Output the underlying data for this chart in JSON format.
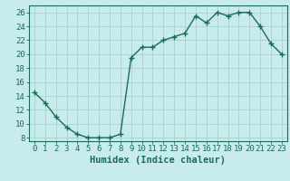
{
  "x": [
    0,
    1,
    2,
    3,
    4,
    5,
    6,
    7,
    8,
    9,
    10,
    11,
    12,
    13,
    14,
    15,
    16,
    17,
    18,
    19,
    20,
    21,
    22,
    23
  ],
  "y": [
    14.5,
    13.0,
    11.0,
    9.5,
    8.5,
    8.0,
    8.0,
    8.0,
    8.5,
    19.5,
    21.0,
    21.0,
    22.0,
    22.5,
    23.0,
    25.5,
    24.5,
    26.0,
    25.5,
    26.0,
    26.0,
    24.0,
    21.5,
    20.0
  ],
  "line_color": "#1a6b5a",
  "marker": "+",
  "bg_color": "#c8ecec",
  "grid_color": "#aad4d0",
  "axis_color": "#1a6b5a",
  "xlabel": "Humidex (Indice chaleur)",
  "ylim": [
    7.5,
    27
  ],
  "xlim": [
    -0.5,
    23.5
  ],
  "yticks": [
    8,
    10,
    12,
    14,
    16,
    18,
    20,
    22,
    24,
    26
  ],
  "xticks": [
    0,
    1,
    2,
    3,
    4,
    5,
    6,
    7,
    8,
    9,
    10,
    11,
    12,
    13,
    14,
    15,
    16,
    17,
    18,
    19,
    20,
    21,
    22,
    23
  ],
  "xlabel_fontsize": 7.5,
  "tick_fontsize": 6.5,
  "line_width": 1.0,
  "marker_size": 4,
  "marker_edge_width": 1.0
}
